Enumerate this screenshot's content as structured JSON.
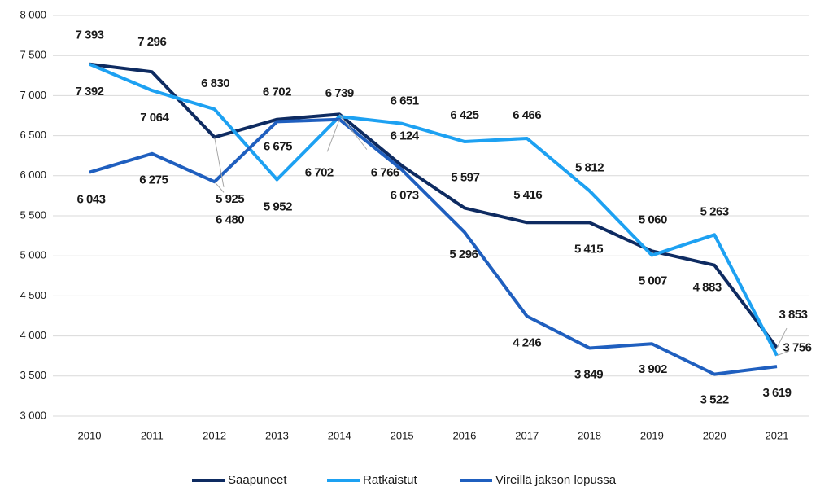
{
  "chart_data": {
    "type": "line",
    "categories": [
      "2010",
      "2011",
      "2012",
      "2013",
      "2014",
      "2015",
      "2016",
      "2017",
      "2018",
      "2019",
      "2020",
      "2021"
    ],
    "series": [
      {
        "name": "Saapuneet",
        "color": "#0e2b61",
        "values": [
          7393,
          7296,
          6480,
          6702,
          6766,
          6124,
          5597,
          5416,
          5415,
          5060,
          4883,
          3853
        ],
        "value_labels": [
          "7 393",
          "7 296",
          "6 480",
          "6 702",
          "6 766",
          "6 124",
          "5 597",
          "5 416",
          "5 415",
          "5 060",
          "4 883",
          "3 853"
        ]
      },
      {
        "name": "Ratkaistut",
        "color": "#1da1f2",
        "values": [
          7392,
          7064,
          6830,
          5952,
          6739,
          6651,
          6425,
          6466,
          5812,
          5007,
          5263,
          3756
        ],
        "value_labels": [
          "7 392",
          "7 064",
          "6 830",
          "5 952",
          "6 739",
          "6 651",
          "6 425",
          "6 466",
          "5 812",
          "5 007",
          "5 263",
          "3 756"
        ]
      },
      {
        "name": "Vireillä jakson lopussa",
        "color": "#1f5fbf",
        "values": [
          6043,
          6275,
          5925,
          6675,
          6702,
          6073,
          5296,
          4246,
          3849,
          3902,
          3522,
          3619
        ],
        "value_labels": [
          "6 043",
          "6 275",
          "5 925",
          "6 675",
          "6 702",
          "6 073",
          "5 296",
          "4 246",
          "3 849",
          "3 902",
          "3 522",
          "3 619"
        ]
      }
    ],
    "ylim": [
      3000,
      8000
    ],
    "yticks": [
      {
        "value": 3000,
        "label": "3 000"
      },
      {
        "value": 3500,
        "label": "3 500"
      },
      {
        "value": 4000,
        "label": "4 000"
      },
      {
        "value": 4500,
        "label": "4 500"
      },
      {
        "value": 5000,
        "label": "5 000"
      },
      {
        "value": 5500,
        "label": "5 500"
      },
      {
        "value": 6000,
        "label": "6 000"
      },
      {
        "value": 6500,
        "label": "6 500"
      },
      {
        "value": 7000,
        "label": "7 000"
      },
      {
        "value": 7500,
        "label": "7 500"
      },
      {
        "value": 8000,
        "label": "8 000"
      }
    ],
    "grid": true,
    "legend": "bottom"
  }
}
